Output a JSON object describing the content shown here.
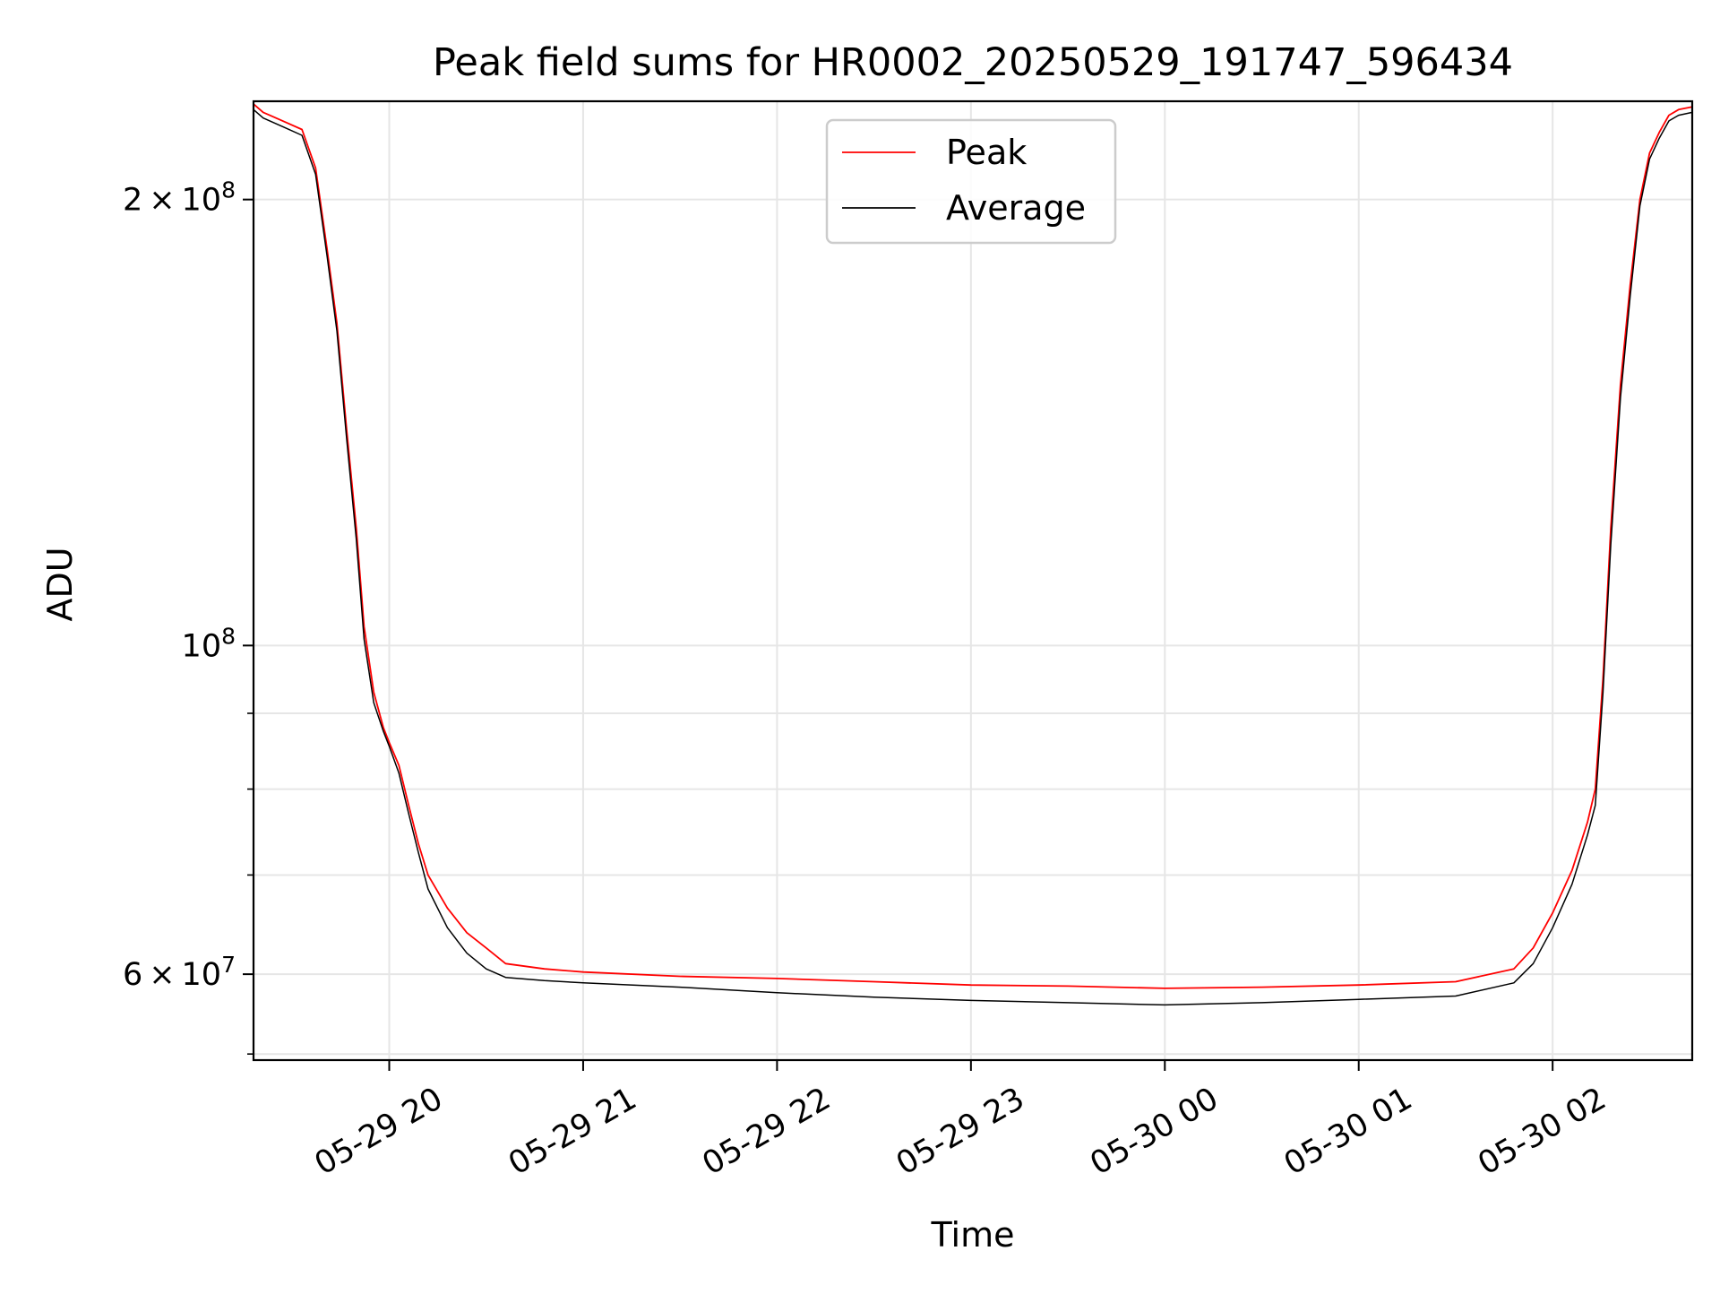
{
  "chart_data": {
    "type": "line",
    "title": "Peak field sums for HR0002_20250529_191747_596434",
    "xlabel": "Time",
    "ylabel": "ADU",
    "yscale": "log",
    "grid": true,
    "legend_position": "upper-center",
    "x_unit": "hours since 05-29 00:00",
    "xlim": [
      19.3,
      26.72
    ],
    "ylim": [
      52500000,
      233000000
    ],
    "x_ticks": [
      {
        "value": 20,
        "label": "05-29 20"
      },
      {
        "value": 21,
        "label": "05-29 21"
      },
      {
        "value": 22,
        "label": "05-29 22"
      },
      {
        "value": 23,
        "label": "05-29 23"
      },
      {
        "value": 24,
        "label": "05-30 00"
      },
      {
        "value": 25,
        "label": "05-30 01"
      },
      {
        "value": 26,
        "label": "05-30 02"
      }
    ],
    "y_major_ticks": [
      {
        "value": 60000000,
        "mantissa": "6",
        "exponent": "7"
      },
      {
        "value": 100000000,
        "mantissa": "",
        "exponent": "8"
      },
      {
        "value": 200000000,
        "mantissa": "2",
        "exponent": "8"
      }
    ],
    "y_minor_grid": [
      70000000,
      80000000,
      90000000,
      53000000
    ],
    "series": [
      {
        "name": "Peak",
        "color": "#ff0000",
        "x": [
          19.3,
          19.35,
          19.45,
          19.55,
          19.62,
          19.68,
          19.73,
          19.78,
          19.83,
          19.87,
          19.92,
          19.97,
          20.0,
          20.05,
          20.1,
          20.15,
          20.2,
          20.3,
          20.4,
          20.5,
          20.6,
          20.8,
          21.0,
          21.5,
          22.0,
          22.5,
          23.0,
          23.5,
          24.0,
          24.5,
          25.0,
          25.5,
          25.8,
          25.9,
          26.0,
          26.1,
          26.18,
          26.22,
          26.26,
          26.3,
          26.35,
          26.4,
          26.45,
          26.5,
          26.55,
          26.6,
          26.65,
          26.72
        ],
        "y": [
          232000000,
          229000000,
          226000000,
          223000000,
          210000000,
          185000000,
          165000000,
          140000000,
          120000000,
          103000000,
          93000000,
          88000000,
          86000000,
          83000000,
          78000000,
          73500000,
          70000000,
          66500000,
          64000000,
          62500000,
          61000000,
          60500000,
          60200000,
          59800000,
          59600000,
          59300000,
          59000000,
          58900000,
          58700000,
          58800000,
          59000000,
          59300000,
          60500000,
          62500000,
          66000000,
          70500000,
          76000000,
          80000000,
          95000000,
          120000000,
          150000000,
          175000000,
          200000000,
          215000000,
          222000000,
          228000000,
          230000000,
          231000000
        ]
      },
      {
        "name": "Average",
        "color": "#000000",
        "x": [
          19.3,
          19.35,
          19.45,
          19.55,
          19.62,
          19.68,
          19.73,
          19.78,
          19.83,
          19.87,
          19.92,
          19.97,
          20.0,
          20.05,
          20.1,
          20.15,
          20.2,
          20.3,
          20.4,
          20.5,
          20.6,
          20.8,
          21.0,
          21.5,
          22.0,
          22.5,
          23.0,
          23.5,
          24.0,
          24.5,
          25.0,
          25.5,
          25.8,
          25.9,
          26.0,
          26.1,
          26.18,
          26.22,
          26.26,
          26.3,
          26.35,
          26.4,
          26.45,
          26.5,
          26.55,
          26.6,
          26.65,
          26.72
        ],
        "y": [
          230000000,
          227000000,
          224000000,
          221000000,
          208000000,
          183000000,
          163000000,
          138000000,
          118000000,
          101000000,
          91500000,
          87500000,
          85500000,
          82000000,
          77000000,
          72500000,
          68500000,
          64500000,
          62000000,
          60500000,
          59700000,
          59400000,
          59200000,
          58800000,
          58300000,
          57900000,
          57600000,
          57400000,
          57200000,
          57400000,
          57700000,
          58000000,
          59200000,
          61000000,
          64500000,
          69000000,
          74500000,
          78000000,
          93000000,
          117000000,
          147000000,
          172000000,
          198000000,
          213000000,
          220000000,
          226000000,
          228000000,
          229000000
        ]
      }
    ]
  }
}
